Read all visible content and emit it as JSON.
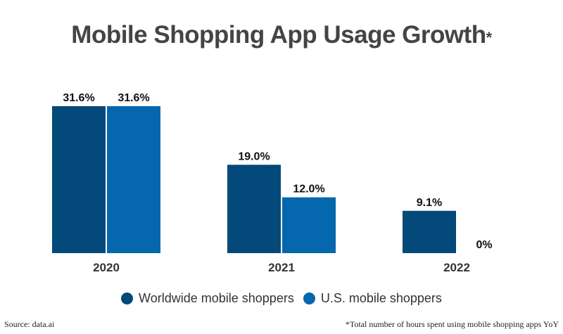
{
  "chart_data": {
    "type": "bar",
    "title": "Mobile Shopping App Usage Growth",
    "title_marker": "*",
    "categories": [
      "2020",
      "2021",
      "2022"
    ],
    "series": [
      {
        "name": "Worldwide mobile shoppers",
        "values": [
          31.6,
          19.0,
          9.1
        ],
        "labels": [
          "31.6%",
          "19.0%",
          "9.1%"
        ],
        "color": "#03497a"
      },
      {
        "name": "U.S. mobile shoppers",
        "values": [
          31.6,
          12.0,
          0
        ],
        "labels": [
          "31.6%",
          "12.0%",
          "0%"
        ],
        "color": "#0567ad"
      }
    ],
    "ylim": [
      0,
      31.6
    ],
    "grid": false,
    "legend_placement": "bottom"
  },
  "footer": {
    "source": "Source: data.ai",
    "note": "*Total number of hours spent using mobile shopping apps YoY"
  }
}
